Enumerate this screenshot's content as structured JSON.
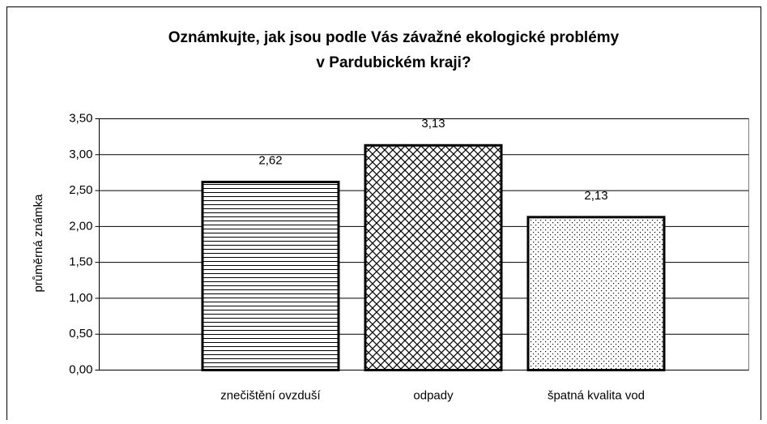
{
  "chart_data": {
    "type": "bar",
    "title": [
      "Oznámkujte, jak jsou podle Vás závažné ekologické problémy",
      "v Pardubickém kraji?"
    ],
    "ylabel": "průměrná známka",
    "categories": [
      "znečištění ovzduší",
      "odpady",
      "špatná kvalita vod"
    ],
    "values": [
      2.62,
      3.13,
      2.13
    ],
    "value_labels": [
      "2,62",
      "3,13",
      "2,13"
    ],
    "patterns": [
      "horizontal",
      "crosshatch",
      "dots"
    ],
    "color": "#000000",
    "ylim": [
      0,
      3.5
    ],
    "yticks": [
      {
        "value": 0,
        "label": "0,00"
      },
      {
        "value": 0.5,
        "label": "0,50"
      },
      {
        "value": 1,
        "label": "1,00"
      },
      {
        "value": 1.5,
        "label": "1,50"
      },
      {
        "value": 2,
        "label": "2,00"
      },
      {
        "value": 2.5,
        "label": "2,50"
      },
      {
        "value": 3,
        "label": "3,00"
      },
      {
        "value": 3.5,
        "label": "3,50"
      }
    ],
    "grid": true
  }
}
